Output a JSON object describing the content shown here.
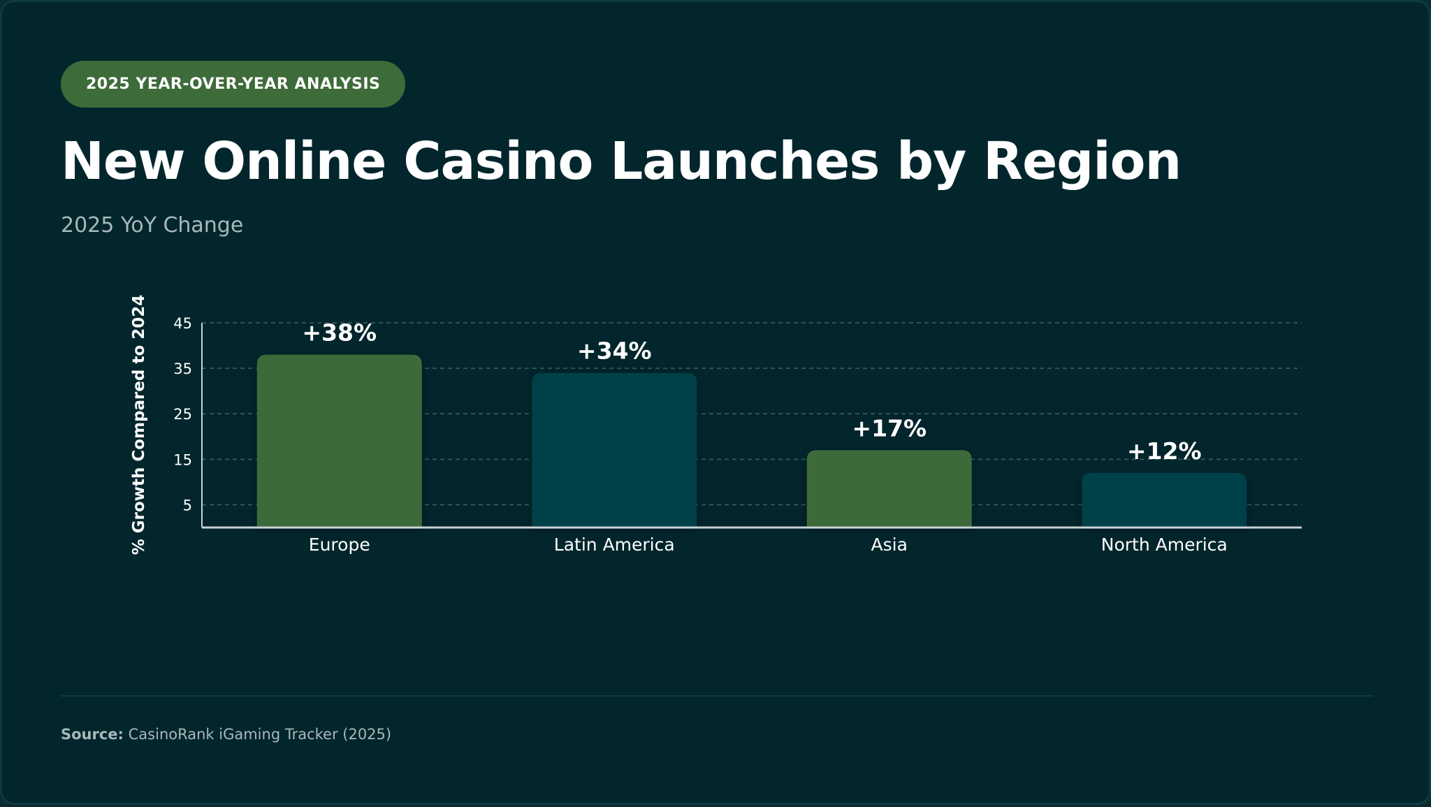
{
  "badge": "2025 YEAR-OVER-YEAR ANALYSIS",
  "title": "New Online Casino Launches by Region",
  "subtitle": "2025 YoY Change",
  "footer": {
    "source_label": "Source:",
    "source_text": "CasinoRank iGaming Tracker (2025)"
  },
  "colors": {
    "background": "#02262c",
    "green_bar": "#3e6b3a",
    "teal_bar": "#063f48",
    "badge": "#3e6b3a",
    "muted_text": "#a8b9ba"
  },
  "chart_data": {
    "type": "bar",
    "categories": [
      "Europe",
      "Latin America",
      "Asia",
      "North America"
    ],
    "values": [
      38,
      34,
      17,
      12
    ],
    "data_labels": [
      "+38%",
      "+34%",
      "+17%",
      "+12%"
    ],
    "bar_colors": [
      "#3e6b3a",
      "#063f48",
      "#3e6b3a",
      "#063f48"
    ],
    "ylabel": "% Growth Compared to 2024",
    "xlabel": "",
    "yticks": [
      5,
      15,
      25,
      35,
      45
    ],
    "ylim": [
      0,
      45
    ],
    "grid": true
  }
}
